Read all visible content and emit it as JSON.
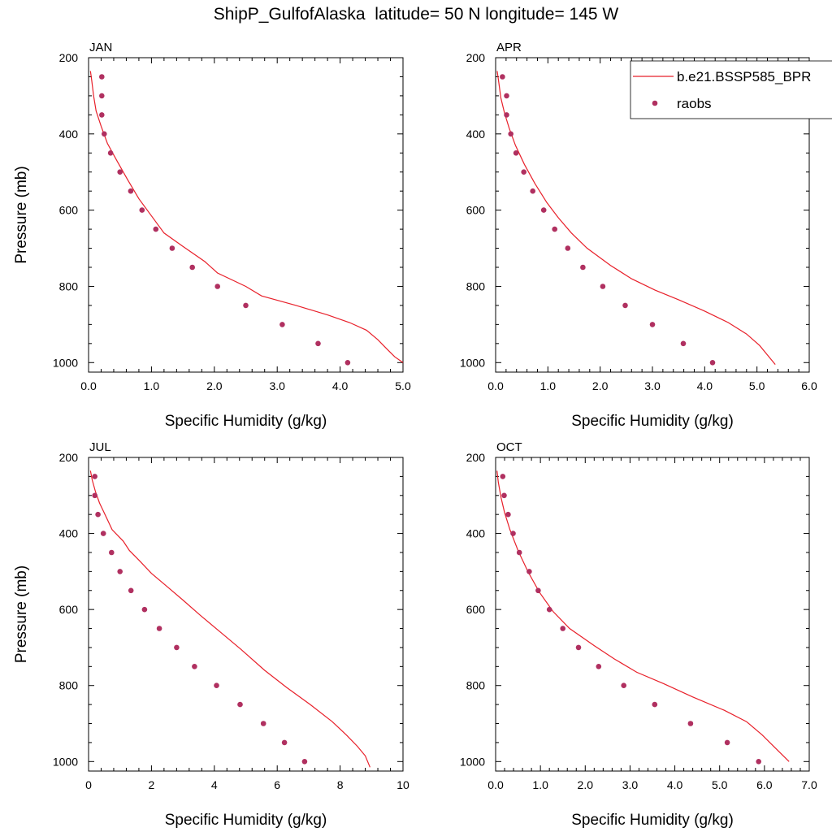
{
  "title": "ShipP_GulfofAlaska  latitude= 50 N longitude= 145 W",
  "legend": {
    "placement": "top-right",
    "model_label": "b.e21.BSSP585_BPR",
    "obs_label": "raobs"
  },
  "colors": {
    "model": "#e8202a",
    "obs": "#b03060"
  },
  "chart_data": [
    {
      "type": "line",
      "panel": "JAN",
      "xlabel": "Specific Humidity (g/kg)",
      "ylabel": "Pressure (mb)",
      "xlim": [
        0,
        5
      ],
      "ylim": [
        1025,
        200
      ],
      "xticks": [
        "0.0",
        "1.0",
        "2.0",
        "3.0",
        "4.0",
        "5.0"
      ],
      "yticks": [
        "200",
        "400",
        "600",
        "800",
        "1000"
      ],
      "series": [
        {
          "name": "b.e21.BSSP585_BPR",
          "mode": "line",
          "points": [
            [
              0.03,
              235
            ],
            [
              0.05,
              260
            ],
            [
              0.08,
              300
            ],
            [
              0.12,
              340
            ],
            [
              0.2,
              380
            ],
            [
              0.3,
              425
            ],
            [
              0.45,
              470
            ],
            [
              0.62,
              520
            ],
            [
              0.8,
              570
            ],
            [
              1.0,
              615
            ],
            [
              1.2,
              660
            ],
            [
              1.5,
              695
            ],
            [
              1.85,
              735
            ],
            [
              2.05,
              765
            ],
            [
              2.5,
              800
            ],
            [
              2.75,
              825
            ],
            [
              3.3,
              850
            ],
            [
              3.8,
              875
            ],
            [
              4.15,
              895
            ],
            [
              4.42,
              915
            ],
            [
              4.6,
              940
            ],
            [
              4.75,
              965
            ],
            [
              4.87,
              985
            ],
            [
              5.0,
              1000
            ]
          ]
        },
        {
          "name": "raobs",
          "mode": "markers",
          "points": [
            [
              0.21,
              250
            ],
            [
              0.21,
              300
            ],
            [
              0.21,
              350
            ],
            [
              0.25,
              400
            ],
            [
              0.35,
              450
            ],
            [
              0.5,
              500
            ],
            [
              0.67,
              550
            ],
            [
              0.85,
              600
            ],
            [
              1.07,
              650
            ],
            [
              1.33,
              700
            ],
            [
              1.65,
              750
            ],
            [
              2.05,
              800
            ],
            [
              2.5,
              850
            ],
            [
              3.08,
              900
            ],
            [
              3.65,
              950
            ],
            [
              4.12,
              1000
            ]
          ]
        }
      ]
    },
    {
      "type": "line",
      "panel": "APR",
      "xlabel": "Specific Humidity (g/kg)",
      "ylabel": "",
      "xlim": [
        0,
        6
      ],
      "ylim": [
        1025,
        200
      ],
      "xticks": [
        "0.0",
        "1.0",
        "2.0",
        "3.0",
        "4.0",
        "5.0",
        "6.0"
      ],
      "yticks": [
        "200",
        "400",
        "600",
        "800",
        "1000"
      ],
      "series": [
        {
          "name": "b.e21.BSSP585_BPR",
          "mode": "line",
          "points": [
            [
              0.03,
              235
            ],
            [
              0.06,
              265
            ],
            [
              0.1,
              305
            ],
            [
              0.17,
              345
            ],
            [
              0.26,
              385
            ],
            [
              0.38,
              430
            ],
            [
              0.55,
              480
            ],
            [
              0.75,
              530
            ],
            [
              0.98,
              580
            ],
            [
              1.2,
              620
            ],
            [
              1.45,
              660
            ],
            [
              1.75,
              700
            ],
            [
              2.2,
              745
            ],
            [
              2.6,
              780
            ],
            [
              3.05,
              810
            ],
            [
              3.5,
              835
            ],
            [
              4.0,
              865
            ],
            [
              4.45,
              895
            ],
            [
              4.8,
              925
            ],
            [
              5.05,
              955
            ],
            [
              5.2,
              980
            ],
            [
              5.35,
              1005
            ]
          ]
        },
        {
          "name": "raobs",
          "mode": "markers",
          "points": [
            [
              0.13,
              250
            ],
            [
              0.21,
              300
            ],
            [
              0.21,
              350
            ],
            [
              0.29,
              400
            ],
            [
              0.39,
              450
            ],
            [
              0.54,
              500
            ],
            [
              0.71,
              550
            ],
            [
              0.92,
              600
            ],
            [
              1.13,
              650
            ],
            [
              1.38,
              700
            ],
            [
              1.67,
              750
            ],
            [
              2.05,
              800
            ],
            [
              2.48,
              850
            ],
            [
              3.0,
              900
            ],
            [
              3.59,
              950
            ],
            [
              4.15,
              1000
            ]
          ]
        }
      ]
    },
    {
      "type": "line",
      "panel": "JUL",
      "xlabel": "Specific Humidity (g/kg)",
      "ylabel": "Pressure (mb)",
      "xlim": [
        0,
        10
      ],
      "ylim": [
        1025,
        200
      ],
      "xticks": [
        "0",
        "2",
        "4",
        "6",
        "8",
        "10"
      ],
      "yticks": [
        "200",
        "400",
        "600",
        "800",
        "1000"
      ],
      "series": [
        {
          "name": "b.e21.BSSP585_BPR",
          "mode": "line",
          "points": [
            [
              0.06,
              235
            ],
            [
              0.12,
              260
            ],
            [
              0.22,
              290
            ],
            [
              0.35,
              320
            ],
            [
              0.55,
              355
            ],
            [
              0.75,
              390
            ],
            [
              1.1,
              420
            ],
            [
              1.3,
              445
            ],
            [
              1.6,
              470
            ],
            [
              2.0,
              505
            ],
            [
              2.5,
              540
            ],
            [
              3.0,
              575
            ],
            [
              3.55,
              615
            ],
            [
              4.2,
              660
            ],
            [
              4.85,
              705
            ],
            [
              5.6,
              760
            ],
            [
              6.3,
              805
            ],
            [
              7.05,
              850
            ],
            [
              7.75,
              895
            ],
            [
              8.2,
              930
            ],
            [
              8.55,
              960
            ],
            [
              8.8,
              985
            ],
            [
              8.95,
              1015
            ]
          ]
        },
        {
          "name": "raobs",
          "mode": "markers",
          "points": [
            [
              0.2,
              250
            ],
            [
              0.2,
              300
            ],
            [
              0.3,
              350
            ],
            [
              0.47,
              400
            ],
            [
              0.73,
              450
            ],
            [
              1.0,
              500
            ],
            [
              1.35,
              550
            ],
            [
              1.78,
              600
            ],
            [
              2.25,
              650
            ],
            [
              2.8,
              700
            ],
            [
              3.37,
              750
            ],
            [
              4.07,
              800
            ],
            [
              4.82,
              850
            ],
            [
              5.56,
              900
            ],
            [
              6.23,
              950
            ],
            [
              6.87,
              1000
            ]
          ]
        }
      ]
    },
    {
      "type": "line",
      "panel": "OCT",
      "xlabel": "Specific Humidity (g/kg)",
      "ylabel": "",
      "xlim": [
        0,
        7
      ],
      "ylim": [
        1025,
        200
      ],
      "xticks": [
        "0.0",
        "1.0",
        "2.0",
        "3.0",
        "4.0",
        "5.0",
        "6.0",
        "7.0"
      ],
      "yticks": [
        "200",
        "400",
        "600",
        "800",
        "1000"
      ],
      "series": [
        {
          "name": "b.e21.BSSP585_BPR",
          "mode": "line",
          "points": [
            [
              0.03,
              235
            ],
            [
              0.06,
              265
            ],
            [
              0.12,
              305
            ],
            [
              0.2,
              345
            ],
            [
              0.32,
              390
            ],
            [
              0.5,
              445
            ],
            [
              0.72,
              500
            ],
            [
              0.98,
              555
            ],
            [
              1.28,
              605
            ],
            [
              1.65,
              650
            ],
            [
              2.2,
              695
            ],
            [
              2.65,
              730
            ],
            [
              3.15,
              765
            ],
            [
              3.75,
              795
            ],
            [
              4.4,
              830
            ],
            [
              5.1,
              865
            ],
            [
              5.6,
              895
            ],
            [
              5.95,
              930
            ],
            [
              6.25,
              965
            ],
            [
              6.55,
              1000
            ]
          ]
        },
        {
          "name": "raobs",
          "mode": "markers",
          "points": [
            [
              0.16,
              250
            ],
            [
              0.19,
              300
            ],
            [
              0.28,
              350
            ],
            [
              0.39,
              400
            ],
            [
              0.53,
              450
            ],
            [
              0.75,
              500
            ],
            [
              0.95,
              550
            ],
            [
              1.2,
              600
            ],
            [
              1.5,
              650
            ],
            [
              1.85,
              700
            ],
            [
              2.3,
              750
            ],
            [
              2.86,
              800
            ],
            [
              3.55,
              850
            ],
            [
              4.35,
              900
            ],
            [
              5.17,
              950
            ],
            [
              5.87,
              1000
            ]
          ]
        }
      ]
    }
  ]
}
